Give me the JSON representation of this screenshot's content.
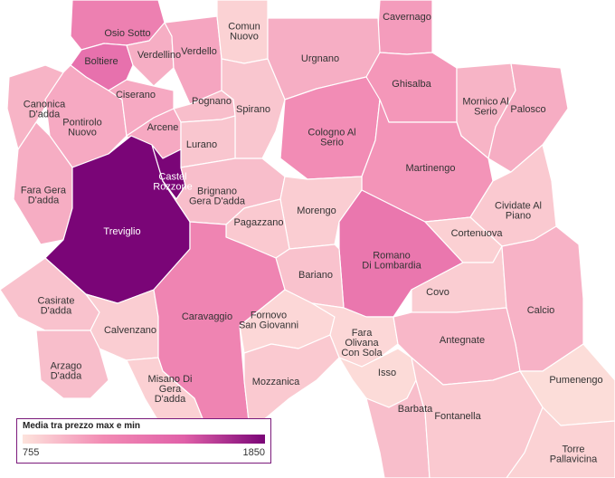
{
  "legend": {
    "title": "Media tra prezzo max e min",
    "min_label": "755",
    "max_label": "1850",
    "min_value": 755,
    "max_value": 1850
  },
  "colors": {
    "low": "#fde3dc",
    "mid": "#f28bb4",
    "high": "#7a0577",
    "border": "#7b1a7b"
  },
  "municipalities": [
    {
      "id": "osio-sotto",
      "lines": [
        "Osio Sotto"
      ],
      "value": 1330
    },
    {
      "id": "boltiere",
      "lines": [
        "Boltiere"
      ],
      "value": 1450
    },
    {
      "id": "verdellino",
      "lines": [
        "Verdellino"
      ],
      "value": 1050
    },
    {
      "id": "verdello",
      "lines": [
        "Verdello"
      ],
      "value": 1100
    },
    {
      "id": "comun-nuovo",
      "lines": [
        "Comun",
        "Nuovo"
      ],
      "value": 850
    },
    {
      "id": "cavernago",
      "lines": [
        "Cavernago"
      ],
      "value": 1150
    },
    {
      "id": "urgnano",
      "lines": [
        "Urgnano"
      ],
      "value": 1050
    },
    {
      "id": "canonica-dadda",
      "lines": [
        "Canonica",
        "D'adda"
      ],
      "value": 1020
    },
    {
      "id": "pontirolo-nuovo",
      "lines": [
        "Pontirolo",
        "Nuovo"
      ],
      "value": 1080
    },
    {
      "id": "ciserano",
      "lines": [
        "Ciserano"
      ],
      "value": 1080
    },
    {
      "id": "pognano",
      "lines": [
        "Pognano"
      ],
      "value": 960
    },
    {
      "id": "spirano",
      "lines": [
        "Spirano"
      ],
      "value": 920
    },
    {
      "id": "ghisalba",
      "lines": [
        "Ghisalba"
      ],
      "value": 1180
    },
    {
      "id": "mornico-al-serio",
      "lines": [
        "Mornico Al",
        "Serio"
      ],
      "value": 1020
    },
    {
      "id": "palosco",
      "lines": [
        "Palosco"
      ],
      "value": 1060
    },
    {
      "id": "arcene",
      "lines": [
        "Arcene"
      ],
      "value": 1080
    },
    {
      "id": "lurano",
      "lines": [
        "Lurano"
      ],
      "value": 920
    },
    {
      "id": "cologno-al-serio",
      "lines": [
        "Cologno Al",
        "Serio"
      ],
      "value": 1240
    },
    {
      "id": "martinengo",
      "lines": [
        "Martinengo"
      ],
      "value": 1200
    },
    {
      "id": "fara-gera-dadda",
      "lines": [
        "Fara Gera",
        "D'adda"
      ],
      "value": 1060
    },
    {
      "id": "treviglio",
      "lines": [
        "Treviglio"
      ],
      "value": 1850
    },
    {
      "id": "castel-rozzone",
      "lines": [
        "Castel",
        "Rozzone"
      ],
      "value": 1850
    },
    {
      "id": "brignano-gera-dadda",
      "lines": [
        "Brignano",
        "Gera D'adda"
      ],
      "value": 960
    },
    {
      "id": "morengo",
      "lines": [
        "Morengo"
      ],
      "value": 880
    },
    {
      "id": "cividate-al-piano",
      "lines": [
        "Cividate Al",
        "Piano"
      ],
      "value": 900
    },
    {
      "id": "pagazzano",
      "lines": [
        "Pagazzano"
      ],
      "value": 900
    },
    {
      "id": "romano-di-lombardia",
      "lines": [
        "Romano",
        "Di Lombardia"
      ],
      "value": 1400
    },
    {
      "id": "cortenuova",
      "lines": [
        "Cortenuova"
      ],
      "value": 860
    },
    {
      "id": "bariano",
      "lines": [
        "Bariano"
      ],
      "value": 940
    },
    {
      "id": "covo",
      "lines": [
        "Covo"
      ],
      "value": 880
    },
    {
      "id": "calcio",
      "lines": [
        "Calcio"
      ],
      "value": 1030
    },
    {
      "id": "casirate-dadda",
      "lines": [
        "Casirate",
        "D'adda"
      ],
      "value": 940
    },
    {
      "id": "calvenzano",
      "lines": [
        "Calvenzano"
      ],
      "value": 880
    },
    {
      "id": "caravaggio",
      "lines": [
        "Caravaggio"
      ],
      "value": 1300
    },
    {
      "id": "fornovo-san-giovanni",
      "lines": [
        "Fornovo",
        "San Giovanni"
      ],
      "value": 820
    },
    {
      "id": "fara-olivana-con-sola",
      "lines": [
        "Fara",
        "Olivana",
        "Con Sola"
      ],
      "value": 820
    },
    {
      "id": "antegnate",
      "lines": [
        "Antegnate"
      ],
      "value": 1000
    },
    {
      "id": "arzago-dadda",
      "lines": [
        "Arzago",
        "D'adda"
      ],
      "value": 960
    },
    {
      "id": "misano-di-gera-dadda",
      "lines": [
        "Misano Di",
        "Gera",
        "D'adda"
      ],
      "value": 860
    },
    {
      "id": "mozzanica",
      "lines": [
        "Mozzanica"
      ],
      "value": 900
    },
    {
      "id": "isso",
      "lines": [
        "Isso"
      ],
      "value": 800
    },
    {
      "id": "pumenengo",
      "lines": [
        "Pumenengo"
      ],
      "value": 790
    },
    {
      "id": "barbata",
      "lines": [
        "Barbata"
      ],
      "value": 960
    },
    {
      "id": "fontanella",
      "lines": [
        "Fontanella"
      ],
      "value": 900
    },
    {
      "id": "torre-pallavicina",
      "lines": [
        "Torre",
        "Pallavicina"
      ],
      "value": 850
    }
  ]
}
